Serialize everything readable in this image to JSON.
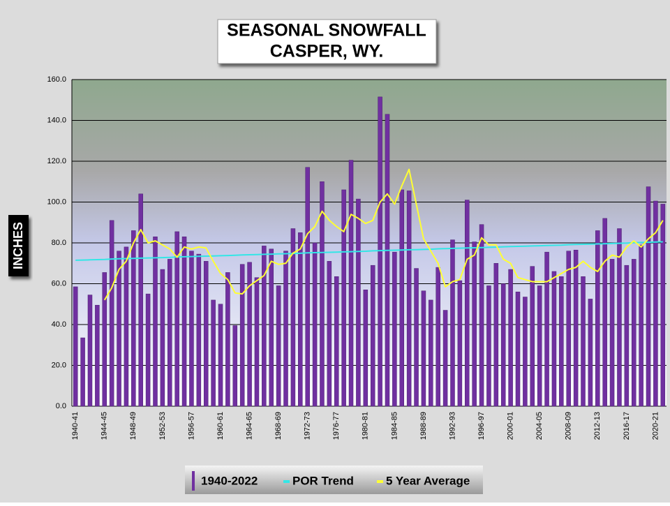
{
  "chart_data": {
    "type": "bar",
    "title": "SEASONAL SNOWFALL",
    "subtitle": "CASPER, WY.",
    "y_label": "INCHES",
    "grid": true,
    "ylim": [
      0,
      160
    ],
    "yticks": [
      {
        "value": 0,
        "label": "0.0"
      },
      {
        "value": 20,
        "label": "20.0"
      },
      {
        "value": 40,
        "label": "40.0"
      },
      {
        "value": 60,
        "label": "60.0"
      },
      {
        "value": 80,
        "label": "80.0"
      },
      {
        "value": 100,
        "label": "100.0"
      },
      {
        "value": 120,
        "label": "120.0"
      },
      {
        "value": 140,
        "label": "140.0"
      },
      {
        "value": 160,
        "label": "160.0"
      }
    ],
    "legend": "bottom",
    "categories": [
      "1940-41",
      null,
      null,
      null,
      "1944-45",
      null,
      null,
      null,
      "1948-49",
      null,
      null,
      null,
      "1952-53",
      null,
      null,
      null,
      "1956-57",
      null,
      null,
      null,
      "1960-61",
      null,
      null,
      null,
      "1964-65",
      null,
      null,
      null,
      "1968-69",
      null,
      null,
      null,
      "1972-73",
      null,
      null,
      null,
      "1976-77",
      null,
      null,
      null,
      "1980-81",
      null,
      null,
      null,
      "1984-85",
      null,
      null,
      null,
      "1988-89",
      null,
      null,
      null,
      "1992-93",
      null,
      null,
      null,
      "1996-97",
      null,
      null,
      null,
      "2000-01",
      null,
      null,
      null,
      "2004-05",
      null,
      null,
      null,
      "2008-09",
      null,
      null,
      null,
      "2012-13",
      null,
      null,
      null,
      "2016-17",
      null,
      null,
      null,
      "2020-21",
      null
    ],
    "series": [
      {
        "name": "1940-2022",
        "type": "bar",
        "color": "#7030a0",
        "values": [
          58.5,
          33.5,
          54.5,
          49.5,
          65.5,
          91,
          76,
          78,
          86,
          104,
          55,
          83,
          67,
          72,
          85.5,
          83,
          76,
          74.5,
          71,
          52,
          50,
          65.5,
          39.5,
          69.5,
          70.5,
          63,
          78.5,
          77,
          59,
          76,
          87,
          85,
          117,
          80,
          110,
          71,
          63.5,
          106,
          120.5,
          101.5,
          57,
          69,
          151.5,
          143,
          75.5,
          106,
          105.5,
          67.5,
          56.5,
          52,
          68,
          47,
          81.5,
          61.5,
          101,
          80.5,
          89,
          59,
          70,
          60,
          67,
          56,
          53.5,
          68.5,
          59,
          75.5,
          66,
          63.5,
          76,
          76.5,
          63.5,
          52.5,
          86,
          92,
          72,
          87,
          69,
          72,
          79,
          107.5,
          100.5,
          99
        ]
      },
      {
        "name": "POR Trend",
        "type": "line",
        "color": "#33e6e6",
        "values": [
          71.5,
          71.6,
          71.7,
          71.8,
          71.9,
          72.1,
          72.2,
          72.3,
          72.4,
          72.5,
          72.6,
          72.7,
          72.8,
          72.9,
          73.1,
          73.2,
          73.3,
          73.4,
          73.5,
          73.6,
          73.7,
          73.8,
          73.9,
          74.1,
          74.2,
          74.3,
          74.4,
          74.5,
          74.6,
          74.7,
          74.8,
          74.9,
          75.1,
          75.2,
          75.3,
          75.4,
          75.5,
          75.6,
          75.7,
          75.8,
          75.9,
          76.1,
          76.2,
          76.3,
          76.4,
          76.5,
          76.6,
          76.7,
          76.8,
          76.9,
          77.1,
          77.2,
          77.3,
          77.4,
          77.5,
          77.6,
          77.7,
          77.8,
          77.9,
          78.1,
          78.2,
          78.3,
          78.4,
          78.5,
          78.6,
          78.7,
          78.8,
          78.9,
          79.1,
          79.2,
          79.3,
          79.4,
          79.5,
          79.6,
          79.7,
          79.8,
          79.9,
          80.1,
          80.2,
          80.3,
          80.4,
          80.5
        ]
      },
      {
        "name": "5 Year Average",
        "type": "line",
        "color": "#ffff33",
        "values": [
          null,
          null,
          null,
          null,
          52,
          58,
          67,
          71,
          80,
          86.5,
          80,
          81,
          79,
          77,
          73,
          78,
          77,
          78,
          77.5,
          71,
          65,
          62,
          55.5,
          55,
          59,
          61.5,
          64,
          71,
          69.5,
          70,
          75,
          77,
          84.5,
          88,
          95.5,
          91,
          88,
          85.5,
          94,
          92,
          89.5,
          91,
          100,
          104,
          99,
          108,
          116,
          99,
          82,
          76,
          70,
          58.5,
          61,
          62,
          72,
          74,
          82.5,
          79,
          79,
          72,
          70,
          63,
          62,
          61,
          61,
          61,
          63,
          65,
          67,
          68,
          71,
          68,
          66,
          71,
          74,
          73,
          78,
          81,
          78,
          82,
          85,
          91
        ]
      }
    ]
  }
}
